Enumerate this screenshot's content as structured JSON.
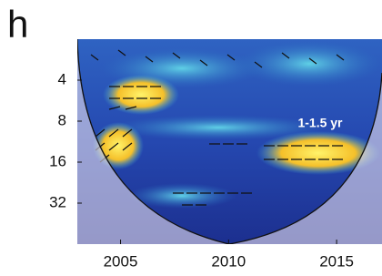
{
  "chart_data": {
    "type": "wavelet",
    "panel_label": "h",
    "annotation": "1-1.5 yr",
    "xlim": [
      2003,
      2017.1
    ],
    "xticks": [
      2005,
      2010,
      2015
    ],
    "ylim": [
      2,
      64
    ],
    "yticks": [
      4,
      8,
      16,
      32
    ],
    "y_scale": "log"
  }
}
